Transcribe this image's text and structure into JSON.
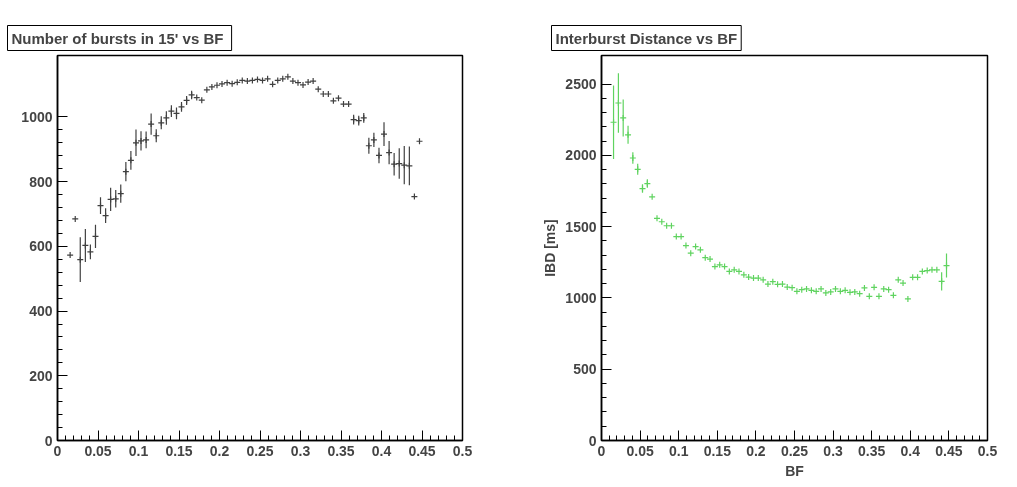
{
  "chart_data": [
    {
      "type": "scatter",
      "title": "Number of bursts in  15' vs BF",
      "marker": "cross",
      "x": [
        0.0156,
        0.0219,
        0.0281,
        0.0344,
        0.0406,
        0.0469,
        0.0531,
        0.0594,
        0.0656,
        0.0719,
        0.0781,
        0.0844,
        0.0906,
        0.0969,
        0.1031,
        0.1094,
        0.1156,
        0.1219,
        0.1281,
        0.1344,
        0.1406,
        0.1469,
        0.1531,
        0.1594,
        0.1656,
        0.1719,
        0.1781,
        0.1844,
        0.1906,
        0.1969,
        0.2031,
        0.2094,
        0.2156,
        0.2219,
        0.2281,
        0.2344,
        0.2406,
        0.2469,
        0.2531,
        0.2594,
        0.2656,
        0.2719,
        0.2781,
        0.2844,
        0.2906,
        0.2969,
        0.3031,
        0.3094,
        0.3156,
        0.3219,
        0.3281,
        0.3344,
        0.3406,
        0.3469,
        0.3531,
        0.3594,
        0.3656,
        0.3719,
        0.3781,
        0.3844,
        0.3906,
        0.3969,
        0.4031,
        0.4094,
        0.4156,
        0.4219,
        0.4281,
        0.4344,
        0.4406,
        0.4469
      ],
      "series": [
        {
          "color": "#404040",
          "values": [
            573,
            685,
            559,
            603,
            583,
            631,
            726,
            695,
            745,
            747,
            763,
            831,
            866,
            920,
            926,
            929,
            978,
            942,
            982,
            997,
            1018,
            1011,
            1031,
            1051,
            1068,
            1060,
            1052,
            1084,
            1093,
            1098,
            1102,
            1106,
            1103,
            1107,
            1113,
            1111,
            1113,
            1116,
            1113,
            1118,
            1101,
            1113,
            1118,
            1124,
            1111,
            1106,
            1099,
            1108,
            1111,
            1086,
            1071,
            1071,
            1050,
            1058,
            1040,
            1040,
            992,
            989,
            997,
            911,
            929,
            881,
            947,
            890,
            854,
            856,
            851,
            849,
            754,
            925
          ],
          "errors": [
            null,
            null,
            69,
            51,
            23,
            36,
            26,
            23,
            36,
            27,
            28,
            30,
            29,
            41,
            30,
            26,
            33,
            20,
            20,
            21,
            18,
            18,
            15,
            14,
            13,
            null,
            null,
            null,
            null,
            null,
            null,
            null,
            null,
            null,
            null,
            null,
            null,
            null,
            null,
            null,
            null,
            null,
            null,
            null,
            null,
            null,
            null,
            null,
            null,
            null,
            null,
            null,
            null,
            null,
            null,
            null,
            15,
            15,
            15,
            25,
            22,
            24,
            37,
            36,
            35,
            47,
            59,
            60,
            null,
            null
          ]
        }
      ],
      "xlim": [
        0,
        0.5
      ],
      "xticks": [
        0,
        0.05,
        0.1,
        0.15,
        0.2,
        0.25,
        0.3,
        0.35,
        0.4,
        0.45,
        0.5
      ],
      "ylim": [
        0,
        1190
      ],
      "yticks": [
        0,
        200,
        400,
        600,
        800,
        1000
      ]
    },
    {
      "type": "scatter",
      "title": "Interburst Distance vs BF",
      "xlabel": "BF",
      "ylabel": "IBD [ms]",
      "marker": "cross",
      "x": [
        0.0156,
        0.0219,
        0.0281,
        0.0344,
        0.0406,
        0.0469,
        0.0531,
        0.0594,
        0.0656,
        0.0719,
        0.0781,
        0.0844,
        0.0906,
        0.0969,
        0.1031,
        0.1094,
        0.1156,
        0.1219,
        0.1281,
        0.1344,
        0.1406,
        0.1469,
        0.1531,
        0.1594,
        0.1656,
        0.1719,
        0.1781,
        0.1844,
        0.1906,
        0.1969,
        0.2031,
        0.2094,
        0.2156,
        0.2219,
        0.2281,
        0.2344,
        0.2406,
        0.2469,
        0.2531,
        0.2594,
        0.2656,
        0.2719,
        0.2781,
        0.2844,
        0.2906,
        0.2969,
        0.3031,
        0.3094,
        0.3156,
        0.3219,
        0.3281,
        0.3344,
        0.3406,
        0.3469,
        0.3531,
        0.3594,
        0.3656,
        0.3719,
        0.3781,
        0.3844,
        0.3906,
        0.3969,
        0.4031,
        0.4094,
        0.4156,
        0.4219,
        0.4281,
        0.4344,
        0.4406,
        0.4469
      ],
      "series": [
        {
          "color": "#5fd35f",
          "values": [
            2232,
            2367,
            2262,
            2144,
            1981,
            1902,
            1767,
            1802,
            1709,
            1558,
            1534,
            1506,
            1506,
            1430,
            1430,
            1367,
            1314,
            1360,
            1337,
            1282,
            1272,
            1220,
            1232,
            1220,
            1186,
            1197,
            1186,
            1162,
            1146,
            1139,
            1139,
            1127,
            1097,
            1114,
            1095,
            1097,
            1076,
            1072,
            1046,
            1058,
            1063,
            1053,
            1046,
            1063,
            1035,
            1042,
            1063,
            1046,
            1053,
            1039,
            1042,
            1030,
            1070,
            1011,
            1074,
            1011,
            1063,
            1058,
            1018,
            1127,
            1104,
            993,
            1144,
            1144,
            1186,
            1192,
            1197,
            1197,
            1116,
            1227
          ],
          "errors": [
            258,
            209,
            130,
            63,
            40,
            38,
            30,
            30,
            null,
            null,
            null,
            null,
            null,
            null,
            null,
            null,
            null,
            null,
            null,
            null,
            null,
            null,
            null,
            null,
            null,
            null,
            null,
            null,
            null,
            null,
            null,
            null,
            null,
            null,
            null,
            null,
            null,
            null,
            null,
            null,
            null,
            null,
            null,
            null,
            null,
            null,
            null,
            null,
            null,
            null,
            null,
            null,
            null,
            null,
            null,
            null,
            null,
            null,
            null,
            null,
            null,
            null,
            null,
            null,
            null,
            null,
            null,
            null,
            64,
            84
          ]
        }
      ],
      "xlim": [
        0,
        0.5
      ],
      "xticks": [
        0,
        0.05,
        0.1,
        0.15,
        0.2,
        0.25,
        0.3,
        0.35,
        0.4,
        0.45,
        0.5
      ],
      "ylim": [
        0,
        2700
      ],
      "yticks": [
        0,
        500,
        1000,
        1500,
        2000,
        2500
      ]
    }
  ]
}
